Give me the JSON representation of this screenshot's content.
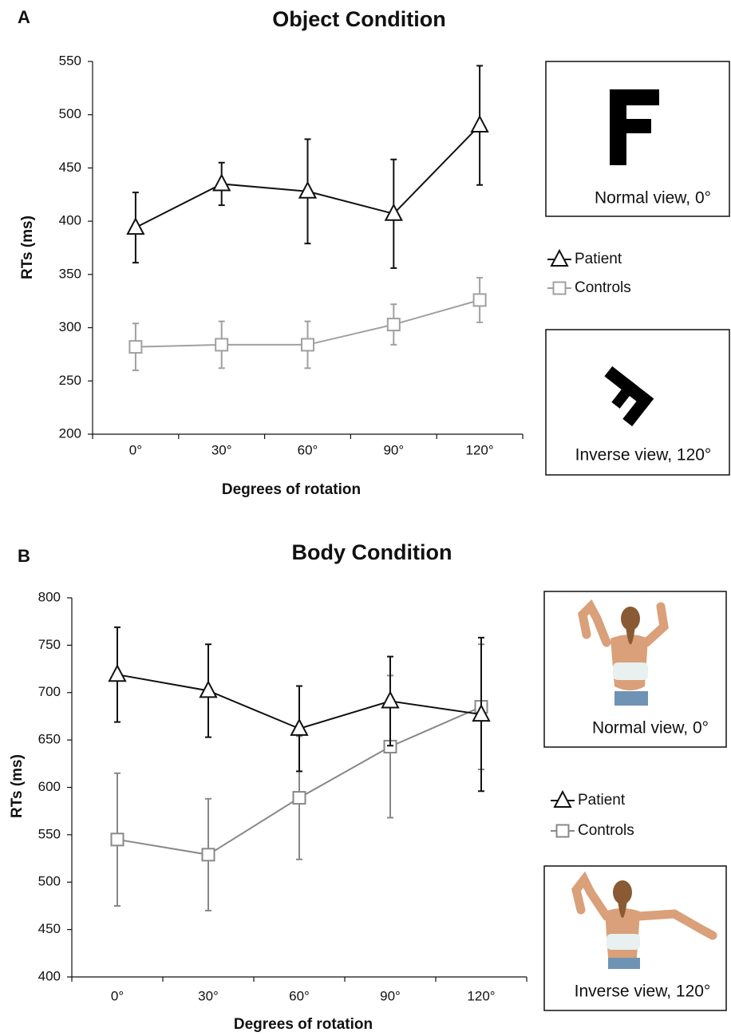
{
  "chart_data": [
    {
      "type": "line",
      "panel_label": "A",
      "title": "Object Condition",
      "x_label": "Degrees of rotation",
      "y_label": "RTs (ms)",
      "categories": [
        "0°",
        "30°",
        "60°",
        "90°",
        "120°"
      ],
      "ylim": [
        200,
        550
      ],
      "yticks": [
        200,
        250,
        300,
        350,
        400,
        450,
        500,
        550
      ],
      "series": [
        {
          "name": "Patient",
          "color": "#111111",
          "marker": "triangle",
          "values": [
            394,
            435,
            428,
            407,
            490
          ],
          "errors": [
            33,
            20,
            49,
            51,
            56
          ]
        },
        {
          "name": "Controls",
          "color": "#a0a0a0",
          "marker": "square",
          "values": [
            282,
            284,
            284,
            303,
            326
          ],
          "errors": [
            22,
            22,
            22,
            19,
            21
          ]
        }
      ],
      "insets": [
        "Normal view, 0°",
        "Inverse view, 120°"
      ]
    },
    {
      "type": "line",
      "panel_label": "B",
      "title": "Body Condition",
      "x_label": "Degrees of rotation",
      "y_label": "RTs (ms)",
      "categories": [
        "0°",
        "30°",
        "60°",
        "90°",
        "120°"
      ],
      "ylim": [
        400,
        800
      ],
      "yticks": [
        400,
        450,
        500,
        550,
        600,
        650,
        700,
        750,
        800
      ],
      "series": [
        {
          "name": "Patient",
          "color": "#111111",
          "marker": "triangle",
          "values": [
            719,
            702,
            662,
            691,
            677
          ],
          "errors": [
            50,
            49,
            45,
            47,
            81
          ]
        },
        {
          "name": "Controls",
          "color": "#888888",
          "marker": "square",
          "values": [
            545,
            529,
            589,
            643,
            685
          ],
          "errors": [
            70,
            59,
            65,
            75,
            66
          ]
        }
      ],
      "insets": [
        "Normal view, 0°",
        "Inverse view, 120°"
      ]
    }
  ]
}
